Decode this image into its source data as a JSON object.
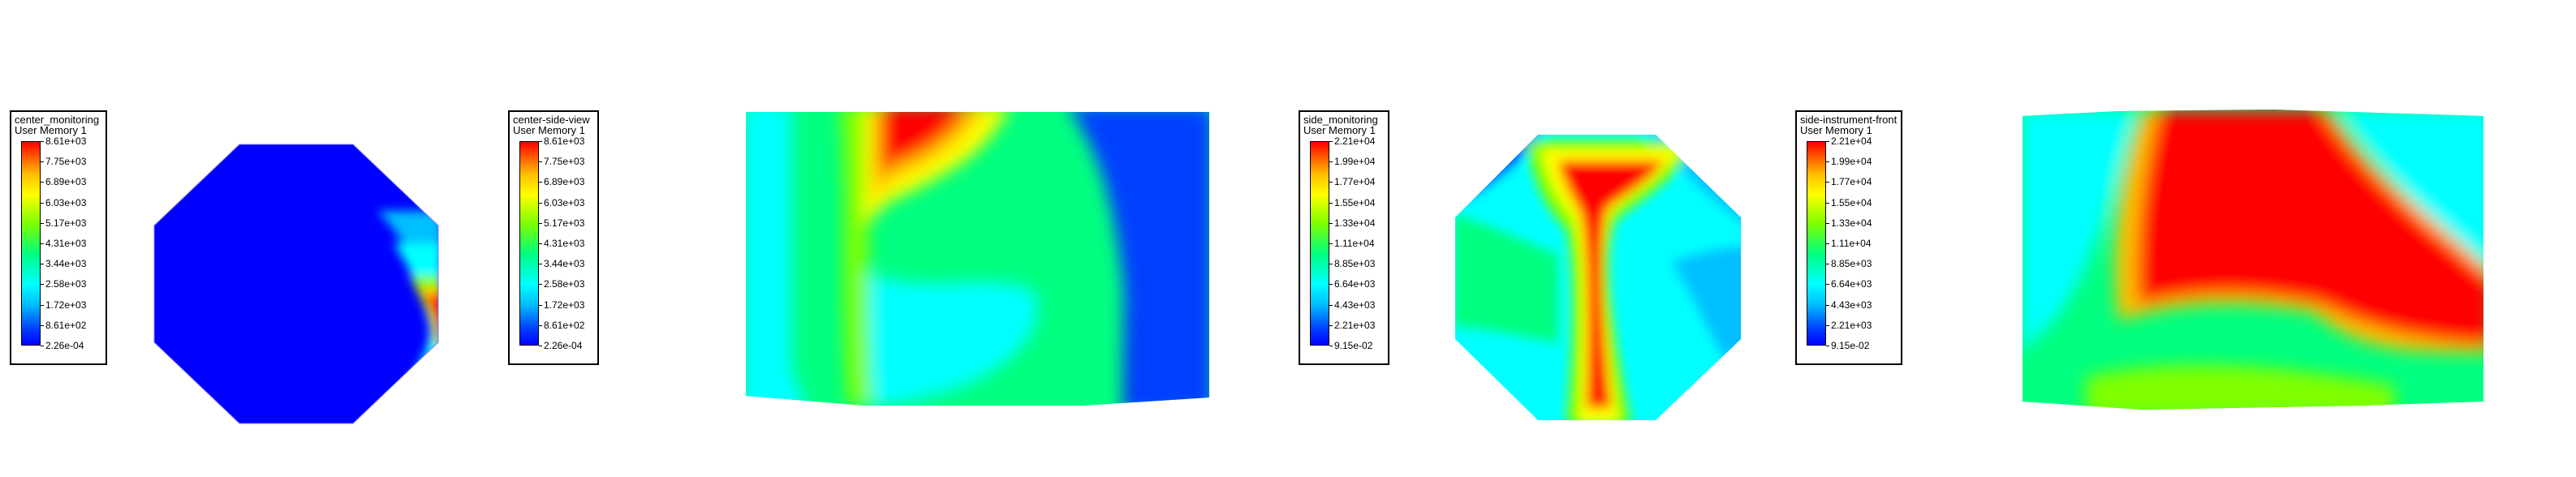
{
  "legends": [
    {
      "id": "center-monitoring",
      "title": "center_monitoring",
      "subtitle": "User Memory 1",
      "ticks": [
        "8.61e+03",
        "7.75e+03",
        "6.89e+03",
        "6.03e+03",
        "5.17e+03",
        "4.31e+03",
        "3.44e+03",
        "2.58e+03",
        "1.72e+03",
        "8.61e+02",
        "2.26e-04"
      ]
    },
    {
      "id": "center-side-view",
      "title": "center-side-view",
      "subtitle": "User Memory 1",
      "ticks": [
        "8.61e+03",
        "7.75e+03",
        "6.89e+03",
        "6.03e+03",
        "5.17e+03",
        "4.31e+03",
        "3.44e+03",
        "2.58e+03",
        "1.72e+03",
        "8.61e+02",
        "2.26e-04"
      ]
    },
    {
      "id": "side-monitoring",
      "title": "side_monitoring",
      "subtitle": "User Memory 1",
      "ticks": [
        "2.21e+04",
        "1.99e+04",
        "1.77e+04",
        "1.55e+04",
        "1.33e+04",
        "1.11e+04",
        "8.85e+03",
        "6.64e+03",
        "4.43e+03",
        "2.21e+03",
        "9.15e-02"
      ]
    },
    {
      "id": "side-instrument-front",
      "title": "side-instrument-front",
      "subtitle": "User Memory 1",
      "ticks": [
        "2.21e+04",
        "1.99e+04",
        "1.77e+04",
        "1.55e+04",
        "1.33e+04",
        "1.11e+04",
        "8.85e+03",
        "6.64e+03",
        "4.43e+03",
        "2.21e+03",
        "9.15e-02"
      ]
    }
  ],
  "colormap": [
    "#ff0000",
    "#ffbf00",
    "#ffff00",
    "#7fff00",
    "#00ff7f",
    "#00ffff",
    "#00bfff",
    "#0040ff",
    "#0000ff"
  ]
}
